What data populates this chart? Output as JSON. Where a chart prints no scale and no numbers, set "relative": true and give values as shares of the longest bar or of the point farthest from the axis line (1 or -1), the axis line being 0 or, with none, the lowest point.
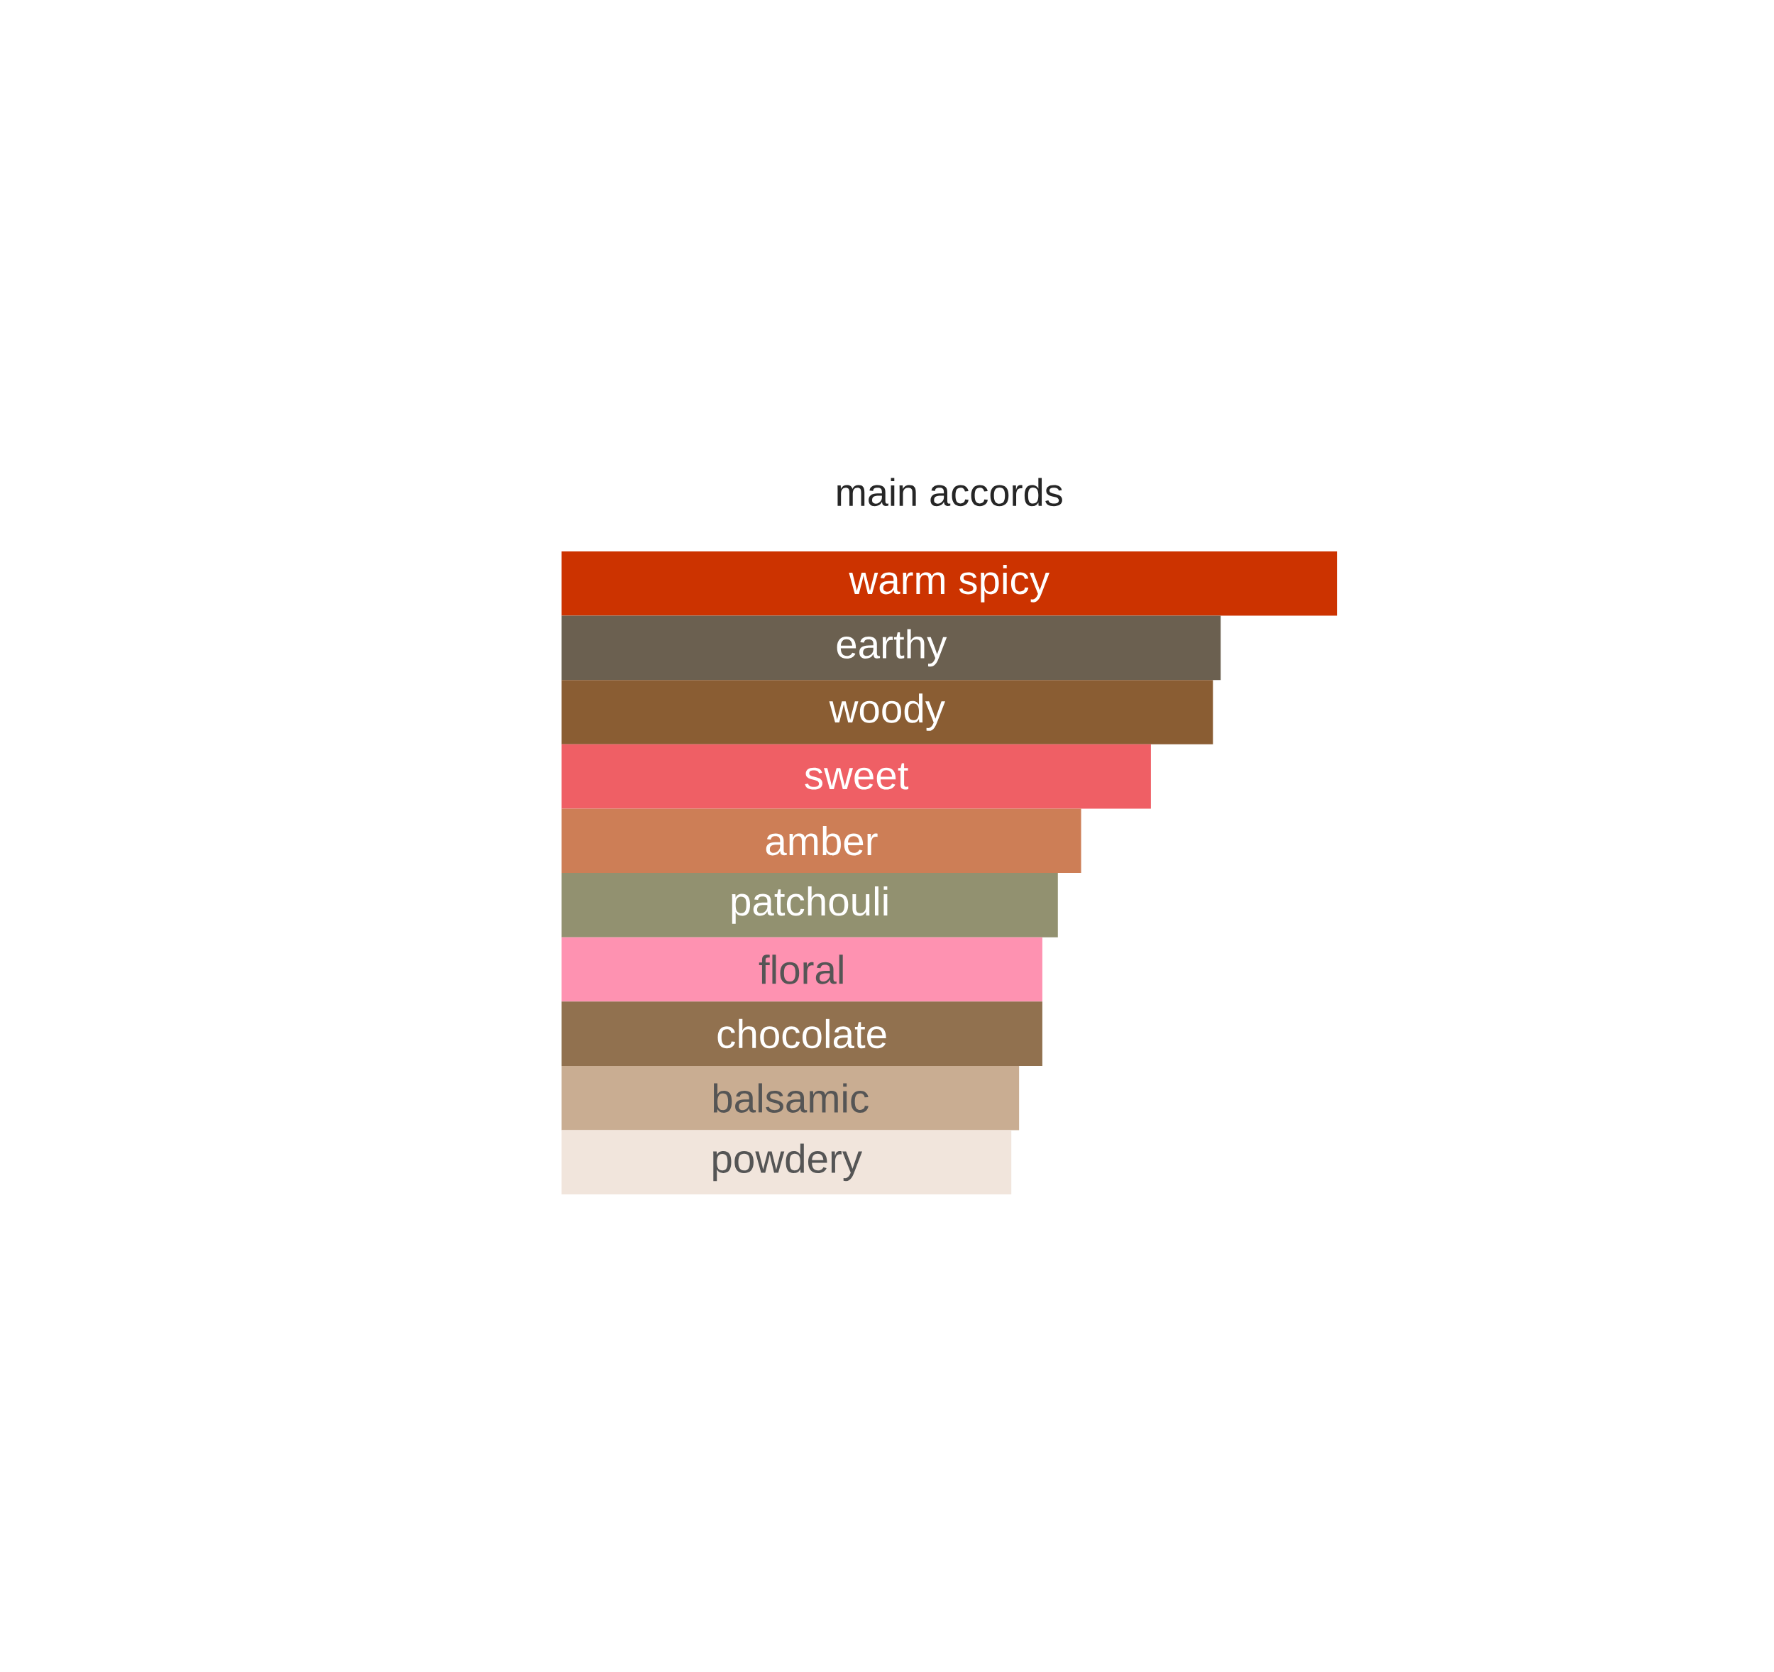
{
  "chart_data": {
    "type": "bar",
    "orientation": "horizontal",
    "relative": true,
    "title": "main accords",
    "categories": [
      "warm spicy",
      "earthy",
      "woody",
      "sweet",
      "amber",
      "patchouli",
      "floral",
      "chocolate",
      "balsamic",
      "powdery"
    ],
    "values": [
      1,
      0.85,
      0.84,
      0.76,
      0.67,
      0.64,
      0.62,
      0.62,
      0.59,
      0.58
    ],
    "colors": [
      "#cc3300",
      "#6b6050",
      "#8a5d33",
      "#ef5f65",
      "#cd7e56",
      "#929170",
      "#fe92b1",
      "#91714f",
      "#c9ad92",
      "#f1e5dc"
    ]
  }
}
